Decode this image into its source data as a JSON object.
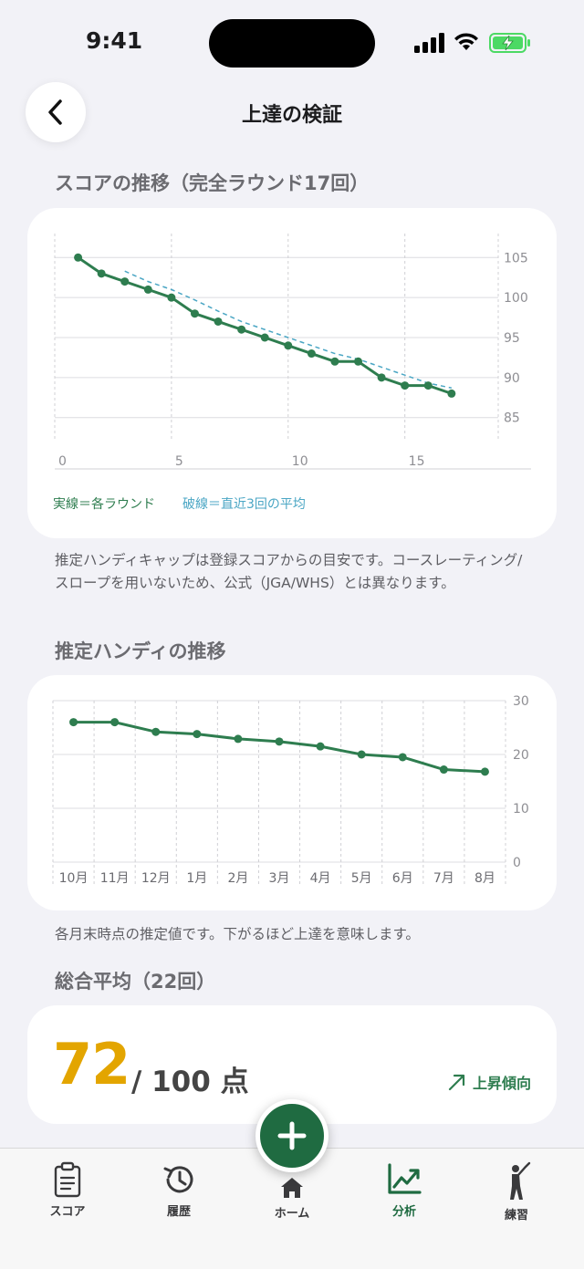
{
  "status": {
    "time": "9:41"
  },
  "header": {
    "title": "上達の検証"
  },
  "score_section": {
    "title": "スコアの推移（完全ラウンド17回）",
    "legend_solid": "実線＝各ラウンド",
    "legend_dashed": "破線＝直近3回の平均",
    "note": "推定ハンディキャップは登録スコアからの目安です。コースレーティング/スロープを用いないため、公式（JGA/WHS）とは異なります。"
  },
  "handicap_section": {
    "title": "推定ハンディの推移",
    "note": "各月末時点の推定値です。下がるほど上達を意味します。"
  },
  "average_section": {
    "title": "総合平均（22回）",
    "score": "72",
    "suffix": "/ 100 点",
    "trend_label": "上昇傾向"
  },
  "tabs": [
    {
      "label": "スコア",
      "icon": "clipboard-icon",
      "active": false
    },
    {
      "label": "履歴",
      "icon": "history-icon",
      "active": false
    },
    {
      "label": "ホーム",
      "icon": "home-icon",
      "active": false
    },
    {
      "label": "分析",
      "icon": "chart-icon",
      "active": true
    },
    {
      "label": "練習",
      "icon": "golfer-icon",
      "active": false
    }
  ],
  "colors": {
    "accent": "#2e7d4f",
    "dashed": "#4aa6c4",
    "score": "#e3a500",
    "fab": "#1f6b41"
  },
  "chart_data": [
    {
      "type": "line",
      "x": [
        1,
        2,
        3,
        4,
        5,
        6,
        7,
        8,
        9,
        10,
        11,
        12,
        13,
        14,
        15,
        16,
        17
      ],
      "series": [
        {
          "values": [
            105,
            103,
            102,
            101,
            100,
            98,
            97,
            96,
            95,
            94,
            93,
            92,
            92,
            90,
            89,
            89,
            88
          ]
        },
        {
          "x": [
            3,
            4,
            5,
            6,
            7,
            8,
            9,
            10,
            11,
            12,
            13,
            14,
            15,
            16,
            17
          ],
          "values": [
            103.3,
            102,
            101,
            99.7,
            98.3,
            97,
            96,
            95,
            94,
            93,
            92.3,
            91.3,
            90.3,
            89.3,
            88.7
          ]
        }
      ],
      "xticks": [
        0,
        5,
        10,
        15
      ],
      "yticks": [
        85,
        90,
        95,
        100,
        105
      ],
      "xlim": [
        0,
        19
      ],
      "ylim": [
        82,
        108
      ],
      "grid": true
    },
    {
      "type": "line",
      "categories": [
        "10月",
        "11月",
        "12月",
        "1月",
        "2月",
        "3月",
        "4月",
        "5月",
        "6月",
        "7月",
        "8月"
      ],
      "series": [
        {
          "values": [
            26,
            26,
            24.2,
            23.8,
            22.9,
            22.4,
            21.5,
            20,
            19.5,
            17.2,
            16.8
          ]
        }
      ],
      "yticks": [
        0,
        10,
        20,
        30
      ],
      "ylim": [
        0,
        30
      ],
      "grid": true
    }
  ]
}
